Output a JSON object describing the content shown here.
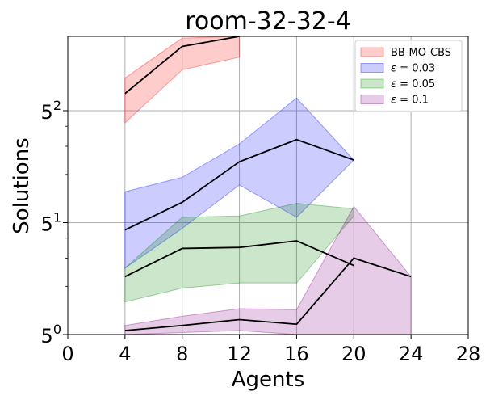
{
  "chart_data": {
    "type": "area",
    "title": "room-32-32-4",
    "xlabel": "Agents",
    "ylabel": "Solutions",
    "xlim": [
      0,
      28
    ],
    "ylim_log5": [
      0,
      2.0
    ],
    "y_scale": "log base 5",
    "grid": true,
    "legend_position": "top-right",
    "x_ticks": [
      0,
      4,
      8,
      12,
      16,
      20,
      24,
      28
    ],
    "x_tick_labels": [
      "0",
      "4",
      "8",
      "12",
      "16",
      "20",
      "24",
      "28"
    ],
    "y_ticks": [
      {
        "value_log5": 0,
        "base": "5",
        "exp": "0"
      },
      {
        "value_log5": 1,
        "base": "5",
        "exp": "1"
      },
      {
        "value_log5": 2,
        "base": "5",
        "exp": "2"
      }
    ],
    "series": [
      {
        "name": "BB-MO-CBS",
        "color": "#ff0000",
        "x": [
          4,
          8,
          12
        ],
        "mean": [
          32.0,
          63.0,
          88.0
        ],
        "lower": [
          21.0,
          45.0,
          54.0
        ],
        "upper": [
          40.0,
          71.0,
          110.0
        ]
      },
      {
        "name": "ε = 0.03",
        "color": "#0000ff",
        "x": [
          4,
          8,
          12,
          16,
          20
        ],
        "mean": [
          4.5,
          6.7,
          12.0,
          16.5,
          12.3
        ],
        "lower": [
          2.6,
          4.6,
          8.6,
          5.4,
          12.3
        ],
        "upper": [
          7.8,
          9.6,
          15.5,
          30.0,
          12.3
        ]
      },
      {
        "name": "ε = 0.05",
        "color": "#008000",
        "x": [
          4,
          8,
          12,
          16,
          20
        ],
        "mean": [
          2.3,
          3.45,
          3.5,
          3.85,
          2.7
        ],
        "lower": [
          1.6,
          1.95,
          2.1,
          2.1,
          5.5
        ],
        "upper": [
          2.6,
          5.4,
          5.5,
          6.6,
          6.1
        ]
      },
      {
        "name": "ε = 0.1",
        "color": "#800080",
        "x": [
          4,
          8,
          12,
          16,
          20,
          24
        ],
        "mean": [
          1.06,
          1.14,
          1.24,
          1.16,
          3.0,
          2.3
        ],
        "lower": [
          1.0,
          1.03,
          1.06,
          0.96,
          1.0,
          1.0
        ],
        "upper": [
          1.14,
          1.3,
          1.45,
          1.43,
          6.3,
          2.3
        ]
      }
    ],
    "legend_sym": "ε",
    "legend_vals": [
      "0.03",
      "0.05",
      "0.1"
    ]
  }
}
